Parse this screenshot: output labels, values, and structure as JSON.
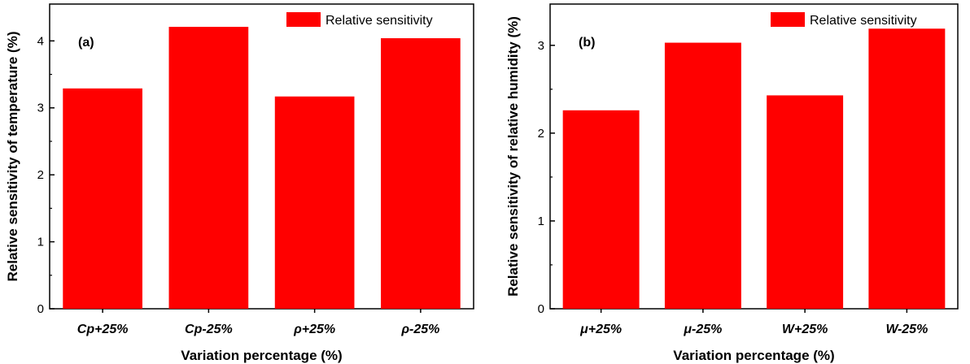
{
  "chart_data": [
    {
      "type": "bar",
      "panel_label": "(a)",
      "categories": [
        "Cp+25%",
        "Cp-25%",
        "ρ+25%",
        "ρ-25%"
      ],
      "series": [
        {
          "name": "Relative sensitivity",
          "values": [
            3.29,
            4.21,
            3.17,
            4.04
          ]
        }
      ],
      "xlabel": "Variation percentage (%)",
      "ylabel": "Relative sensitivity of temperature (%)",
      "ylim": [
        0,
        4.55
      ],
      "yticks": [
        0,
        1,
        2,
        3,
        4
      ],
      "grid": false,
      "legend": "top-right",
      "color": "#ff0000"
    },
    {
      "type": "bar",
      "panel_label": "(b)",
      "categories": [
        "μ+25%",
        "μ-25%",
        "W+25%",
        "W-25%"
      ],
      "series": [
        {
          "name": "Relative sensitivity",
          "values": [
            2.26,
            3.03,
            2.43,
            3.19
          ]
        }
      ],
      "xlabel": "Variation percentage (%)",
      "ylabel": "Relative sensitivity of relative humidity (%)",
      "ylim": [
        0,
        3.47
      ],
      "yticks": [
        0,
        1,
        2,
        3
      ],
      "grid": false,
      "legend": "top-right",
      "color": "#ff0000"
    }
  ]
}
